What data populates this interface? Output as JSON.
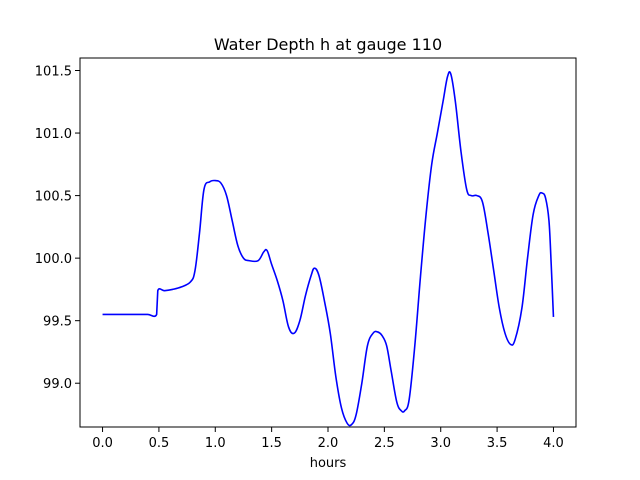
{
  "chart_data": {
    "type": "line",
    "title": "Water Depth h at gauge 110",
    "xlabel": "hours",
    "ylabel": "",
    "xlim": [
      -0.2,
      4.2
    ],
    "ylim": [
      98.65,
      101.6
    ],
    "x_ticks": [
      0.0,
      0.5,
      1.0,
      1.5,
      2.0,
      2.5,
      3.0,
      3.5,
      4.0
    ],
    "x_tick_labels": [
      "0.0",
      "0.5",
      "1.0",
      "1.5",
      "2.0",
      "2.5",
      "3.0",
      "3.5",
      "4.0"
    ],
    "y_ticks": [
      99.0,
      99.5,
      100.0,
      100.5,
      101.0,
      101.5
    ],
    "y_tick_labels": [
      "99.0",
      "99.5",
      "100.0",
      "100.5",
      "101.0",
      "101.5"
    ],
    "grid": false,
    "series": [
      {
        "color": "#0000ff",
        "points": [
          [
            0.0,
            99.55
          ],
          [
            0.1,
            99.55
          ],
          [
            0.2,
            99.55
          ],
          [
            0.3,
            99.55
          ],
          [
            0.4,
            99.55
          ],
          [
            0.48,
            99.55
          ],
          [
            0.49,
            99.74
          ],
          [
            0.55,
            99.74
          ],
          [
            0.62,
            99.75
          ],
          [
            0.7,
            99.77
          ],
          [
            0.78,
            99.81
          ],
          [
            0.82,
            99.9
          ],
          [
            0.86,
            100.2
          ],
          [
            0.9,
            100.55
          ],
          [
            0.95,
            100.61
          ],
          [
            1.0,
            100.62
          ],
          [
            1.05,
            100.6
          ],
          [
            1.1,
            100.5
          ],
          [
            1.15,
            100.3
          ],
          [
            1.2,
            100.1
          ],
          [
            1.25,
            100.0
          ],
          [
            1.3,
            99.98
          ],
          [
            1.38,
            99.98
          ],
          [
            1.43,
            100.05
          ],
          [
            1.46,
            100.06
          ],
          [
            1.5,
            99.95
          ],
          [
            1.55,
            99.82
          ],
          [
            1.6,
            99.66
          ],
          [
            1.65,
            99.45
          ],
          [
            1.7,
            99.4
          ],
          [
            1.75,
            99.5
          ],
          [
            1.8,
            99.7
          ],
          [
            1.85,
            99.86
          ],
          [
            1.88,
            99.92
          ],
          [
            1.92,
            99.86
          ],
          [
            1.97,
            99.65
          ],
          [
            2.02,
            99.4
          ],
          [
            2.07,
            99.05
          ],
          [
            2.12,
            98.8
          ],
          [
            2.17,
            98.68
          ],
          [
            2.21,
            98.67
          ],
          [
            2.25,
            98.75
          ],
          [
            2.3,
            99.0
          ],
          [
            2.35,
            99.3
          ],
          [
            2.4,
            99.4
          ],
          [
            2.44,
            99.41
          ],
          [
            2.48,
            99.38
          ],
          [
            2.52,
            99.3
          ],
          [
            2.56,
            99.1
          ],
          [
            2.61,
            98.85
          ],
          [
            2.65,
            98.78
          ],
          [
            2.68,
            98.78
          ],
          [
            2.72,
            98.87
          ],
          [
            2.77,
            99.3
          ],
          [
            2.82,
            99.85
          ],
          [
            2.87,
            100.35
          ],
          [
            2.92,
            100.75
          ],
          [
            2.97,
            101.0
          ],
          [
            3.02,
            101.25
          ],
          [
            3.06,
            101.45
          ],
          [
            3.09,
            101.47
          ],
          [
            3.13,
            101.25
          ],
          [
            3.18,
            100.85
          ],
          [
            3.23,
            100.55
          ],
          [
            3.27,
            100.5
          ],
          [
            3.32,
            100.5
          ],
          [
            3.37,
            100.45
          ],
          [
            3.42,
            100.2
          ],
          [
            3.47,
            99.9
          ],
          [
            3.52,
            99.6
          ],
          [
            3.57,
            99.4
          ],
          [
            3.62,
            99.31
          ],
          [
            3.66,
            99.35
          ],
          [
            3.72,
            99.6
          ],
          [
            3.77,
            100.0
          ],
          [
            3.82,
            100.35
          ],
          [
            3.87,
            100.5
          ],
          [
            3.9,
            100.52
          ],
          [
            3.93,
            100.48
          ],
          [
            3.96,
            100.3
          ],
          [
            3.98,
            99.95
          ],
          [
            4.0,
            99.53
          ]
        ]
      }
    ]
  }
}
